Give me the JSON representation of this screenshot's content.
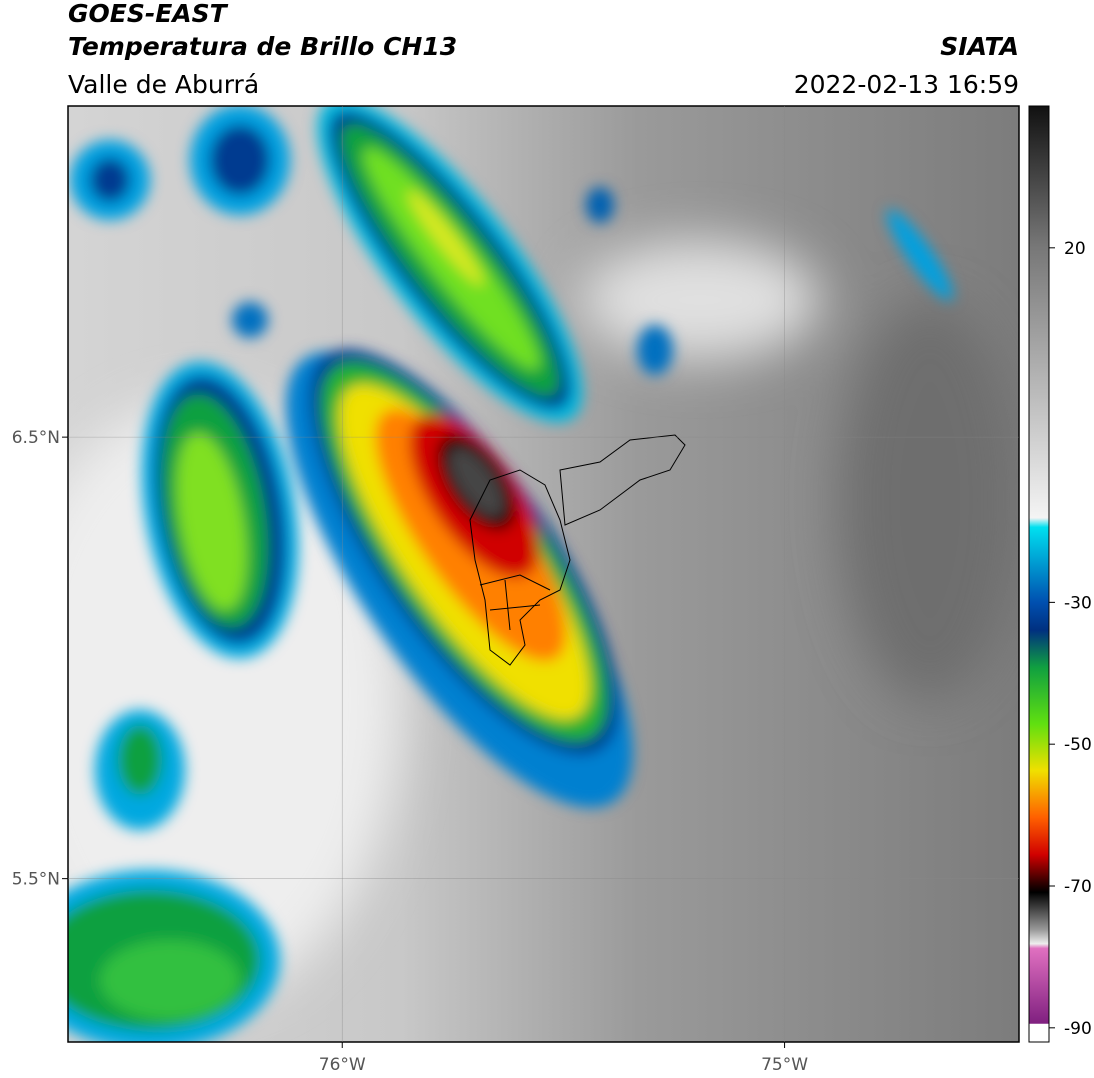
{
  "header": {
    "title": "GOES-EAST",
    "subtitle": "Temperatura de Brillo CH13",
    "source": "SIATA",
    "region": "Valle de Aburrá",
    "datetime": "2022-02-13 16:59"
  },
  "map": {
    "xlim": [
      -76.62,
      -74.47
    ],
    "ylim": [
      5.13,
      7.25
    ],
    "xticks": [
      {
        "value": -76,
        "label": "76°W"
      },
      {
        "value": -75,
        "label": "75°W"
      }
    ],
    "yticks": [
      {
        "value": 6.5,
        "label": "6.5°N"
      },
      {
        "value": 5.5,
        "label": "5.5°N"
      }
    ],
    "grid": true
  },
  "colorbar": {
    "lim": [
      -92,
      40
    ],
    "ticks": [
      20,
      -30,
      -50,
      -70,
      -90
    ]
  }
}
